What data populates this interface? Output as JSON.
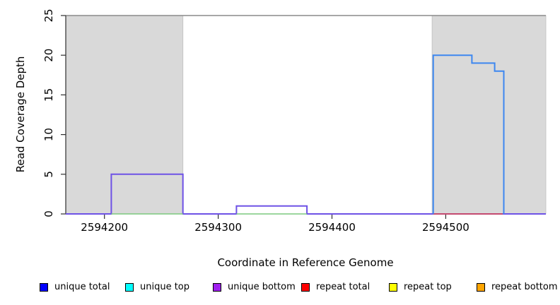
{
  "chart_data": {
    "type": "line",
    "title": "",
    "xlabel": "Coordinate in Reference Genome",
    "ylabel": "Read Coverage Depth",
    "xlim": [
      2594166,
      2594588
    ],
    "ylim": [
      0,
      25
    ],
    "x_ticks": [
      2594200,
      2594300,
      2594400,
      2594500
    ],
    "y_ticks": [
      0,
      5,
      10,
      15,
      20,
      25
    ],
    "grid": false,
    "legend_position": "bottom",
    "shaded_regions": [
      {
        "name": "shaded-region-left",
        "x0": 2594166,
        "x1": 2594269,
        "color": "#d9d9d9"
      },
      {
        "name": "shaded-region-right",
        "x0": 2594488,
        "x1": 2594588,
        "color": "#d9d9d9"
      }
    ],
    "top_border": {
      "y": 25,
      "color": "#8a8a8a"
    },
    "series": [
      {
        "name": "unique bottom",
        "color": "#6e52e6",
        "width": 2,
        "segments": [
          [
            [
              2594166,
              0
            ],
            [
              2594206,
              0
            ],
            [
              2594206,
              5
            ],
            [
              2594269,
              5
            ],
            [
              2594269,
              0
            ],
            [
              2594316,
              0
            ],
            [
              2594316,
              1
            ],
            [
              2594378,
              1
            ],
            [
              2594378,
              0
            ],
            [
              2594588,
              0
            ]
          ]
        ]
      },
      {
        "name": "unique top",
        "color": "#7cc87e",
        "width": 1.5,
        "segments": [
          [
            [
              2594206,
              0
            ],
            [
              2594269,
              0
            ]
          ],
          [
            [
              2594316,
              0
            ],
            [
              2594378,
              0
            ]
          ]
        ]
      },
      {
        "name": "repeat total",
        "color": "#e04848",
        "width": 1.5,
        "segments": [
          [
            [
              2594489,
              0
            ],
            [
              2594550,
              0
            ]
          ]
        ]
      },
      {
        "name": "unique total",
        "color": "#3d87f0",
        "width": 2,
        "segments": [
          [
            [
              2594489,
              0
            ],
            [
              2594489,
              20
            ],
            [
              2594523,
              20
            ],
            [
              2594523,
              19
            ],
            [
              2594543,
              19
            ],
            [
              2594543,
              18
            ],
            [
              2594551,
              18
            ],
            [
              2594551,
              0
            ]
          ]
        ]
      }
    ]
  },
  "legend": [
    {
      "label": "unique total",
      "color": "#0000ff"
    },
    {
      "label": "unique top",
      "color": "#00ffff"
    },
    {
      "label": "unique bottom",
      "color": "#a020f0"
    },
    {
      "label": "repeat total",
      "color": "#ff0000"
    },
    {
      "label": "repeat top",
      "color": "#ffff00"
    },
    {
      "label": "repeat bottom",
      "color": "#ffa500"
    }
  ]
}
